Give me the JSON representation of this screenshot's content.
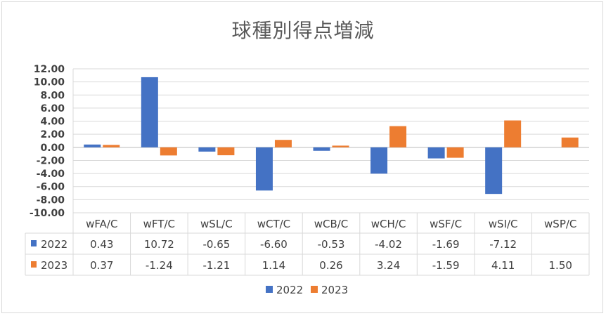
{
  "title": "球種別得点増減",
  "chart_data": {
    "type": "bar",
    "title": "球種別得点増減",
    "categories": [
      "wFA/C",
      "wFT/C",
      "wSL/C",
      "wCT/C",
      "wCB/C",
      "wCH/C",
      "wSF/C",
      "wSI/C",
      "wSP/C"
    ],
    "series": [
      {
        "name": "2022",
        "color": "#4472c4",
        "values": [
          0.43,
          10.72,
          -0.65,
          -6.6,
          -0.53,
          -4.02,
          -1.69,
          -7.12,
          null
        ],
        "labels": [
          "0.43",
          "10.72",
          "-0.65",
          "-6.60",
          "-0.53",
          "-4.02",
          "-1.69",
          "-7.12",
          ""
        ]
      },
      {
        "name": "2023",
        "color": "#ed7d31",
        "values": [
          0.37,
          -1.24,
          -1.21,
          1.14,
          0.26,
          3.24,
          -1.59,
          4.11,
          1.5
        ],
        "labels": [
          "0.37",
          "-1.24",
          "-1.21",
          "1.14",
          "0.26",
          "3.24",
          "-1.59",
          "4.11",
          "1.50"
        ]
      }
    ],
    "ylim": [
      -10,
      12
    ],
    "yticks": [
      "12.00",
      "10.00",
      "8.00",
      "6.00",
      "4.00",
      "2.00",
      "0.00",
      "-2.00",
      "-4.00",
      "-6.00",
      "-8.00",
      "-10.00"
    ],
    "data_table": true,
    "legend": "bottom",
    "grid": true
  }
}
